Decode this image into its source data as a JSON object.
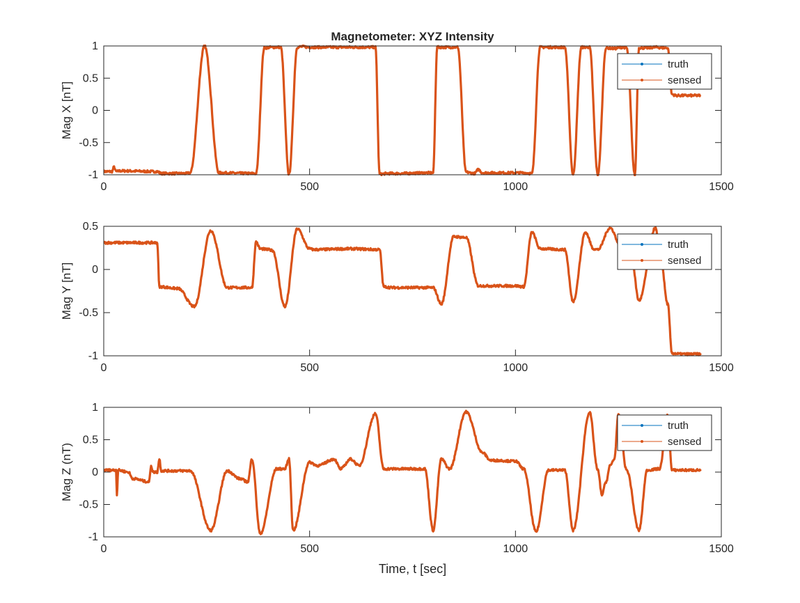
{
  "figure": {
    "title": "Magnetometer: XYZ Intensity",
    "xlabel": "Time, t [sec]"
  },
  "colors": {
    "truth": "#0072bd",
    "sensed": "#d95319",
    "axis": "#262626"
  },
  "legend_position": "top-right",
  "chart_data": [
    {
      "type": "line",
      "title": "Magnetometer: XYZ Intensity",
      "ylabel": "Mag X [nT]",
      "xlabel": "",
      "xlim": [
        0,
        1500
      ],
      "ylim": [
        -1,
        1
      ],
      "xticks": [
        0,
        500,
        1000,
        1500
      ],
      "yticks": [
        -1,
        -0.5,
        0,
        0.5,
        1
      ],
      "xtick_labels": [
        "0",
        "500",
        "1000",
        "1500"
      ],
      "ytick_labels": [
        "-1",
        "-0.5",
        "0",
        "0.5",
        "1"
      ],
      "legend": [
        "truth",
        "sensed"
      ],
      "series": [
        {
          "name": "sensed",
          "x": [
            0,
            20,
            25,
            30,
            40,
            130,
            140,
            200,
            210,
            245,
            280,
            370,
            390,
            410,
            430,
            450,
            470,
            480,
            500,
            530,
            640,
            660,
            670,
            690,
            710,
            800,
            810,
            820,
            840,
            860,
            880,
            900,
            910,
            920,
            1020,
            1040,
            1060,
            1080,
            1100,
            1120,
            1140,
            1160,
            1180,
            1200,
            1220,
            1240,
            1260,
            1270,
            1290,
            1300,
            1320,
            1340,
            1360,
            1370,
            1380,
            1390,
            1450
          ],
          "y": [
            -0.95,
            -0.95,
            -0.88,
            -0.95,
            -0.94,
            -0.95,
            -0.98,
            -0.98,
            -0.97,
            1.0,
            -0.97,
            -0.98,
            0.97,
            0.98,
            0.98,
            -1.0,
            0.98,
            0.99,
            0.98,
            0.98,
            0.98,
            0.98,
            -0.99,
            -0.98,
            -0.98,
            -0.97,
            0.98,
            0.98,
            0.98,
            0.98,
            -0.96,
            -0.98,
            -0.92,
            -0.97,
            -0.97,
            -0.98,
            0.98,
            0.98,
            0.98,
            0.98,
            -1.0,
            0.98,
            0.98,
            -1.0,
            0.97,
            0.96,
            0.98,
            0.97,
            -1.0,
            0.97,
            0.97,
            0.98,
            0.97,
            0.97,
            0.25,
            0.23,
            0.23
          ]
        },
        {
          "name": "truth",
          "x": [
            0,
            20,
            25,
            30,
            40,
            130,
            140,
            200,
            210,
            245,
            280,
            370,
            390,
            410,
            430,
            450,
            470,
            480,
            500,
            530,
            640,
            660,
            670,
            690,
            710,
            800,
            810,
            820,
            840,
            860,
            880,
            900,
            910,
            920,
            1020,
            1040,
            1060,
            1080,
            1100,
            1120,
            1140,
            1160,
            1180,
            1200,
            1220,
            1240,
            1260,
            1270,
            1290,
            1300,
            1320,
            1340,
            1360,
            1370,
            1380,
            1390,
            1450
          ],
          "y": [
            -0.95,
            -0.95,
            -0.88,
            -0.95,
            -0.94,
            -0.95,
            -0.98,
            -0.98,
            -0.97,
            1.0,
            -0.97,
            -0.98,
            0.97,
            0.98,
            0.98,
            -1.0,
            0.98,
            0.99,
            0.98,
            0.98,
            0.98,
            0.98,
            -0.99,
            -0.98,
            -0.98,
            -0.97,
            0.98,
            0.98,
            0.98,
            0.98,
            -0.96,
            -0.98,
            -0.92,
            -0.97,
            -0.97,
            -0.98,
            0.98,
            0.98,
            0.98,
            0.98,
            -1.0,
            0.98,
            0.98,
            -1.0,
            0.97,
            0.96,
            0.98,
            0.97,
            -1.0,
            0.97,
            0.97,
            0.98,
            0.97,
            0.97,
            0.25,
            0.23,
            0.23
          ]
        }
      ]
    },
    {
      "type": "line",
      "title": "",
      "ylabel": "Mag Y [nT]",
      "xlabel": "",
      "xlim": [
        0,
        1500
      ],
      "ylim": [
        -1,
        0.5
      ],
      "xticks": [
        0,
        500,
        1000,
        1500
      ],
      "yticks": [
        -1,
        -0.5,
        0,
        0.5
      ],
      "xtick_labels": [
        "0",
        "500",
        "1000",
        "1500"
      ],
      "ytick_labels": [
        "-1",
        "-0.5",
        "0",
        "0.5"
      ],
      "legend": [
        "truth",
        "sensed"
      ],
      "series": [
        {
          "name": "sensed",
          "x": [
            0,
            130,
            135,
            180,
            220,
            260,
            300,
            360,
            370,
            380,
            400,
            410,
            440,
            470,
            500,
            510,
            600,
            670,
            680,
            700,
            800,
            820,
            850,
            880,
            910,
            1000,
            1020,
            1040,
            1060,
            1120,
            1140,
            1170,
            1190,
            1200,
            1230,
            1260,
            1280,
            1300,
            1340,
            1350,
            1370,
            1380,
            1381,
            1400,
            1450
          ],
          "y": [
            0.31,
            0.31,
            -0.2,
            -0.22,
            -0.43,
            0.45,
            -0.21,
            -0.21,
            0.32,
            0.24,
            0.23,
            0.22,
            -0.43,
            0.47,
            0.24,
            0.23,
            0.24,
            0.23,
            -0.2,
            -0.21,
            -0.21,
            -0.4,
            0.38,
            0.37,
            -0.19,
            -0.19,
            -0.2,
            0.43,
            0.24,
            0.23,
            -0.37,
            0.43,
            0.24,
            0.23,
            0.48,
            0.22,
            0.2,
            -0.36,
            0.48,
            0.24,
            -0.4,
            -0.97,
            -0.97,
            -0.98,
            -0.98
          ]
        },
        {
          "name": "truth",
          "x": [
            0,
            130,
            135,
            180,
            220,
            260,
            300,
            360,
            370,
            380,
            400,
            410,
            440,
            470,
            500,
            510,
            600,
            670,
            680,
            700,
            800,
            820,
            850,
            880,
            910,
            1000,
            1020,
            1040,
            1060,
            1120,
            1140,
            1170,
            1190,
            1200,
            1230,
            1260,
            1280,
            1300,
            1340,
            1350,
            1370,
            1380,
            1381,
            1400,
            1450
          ],
          "y": [
            0.31,
            0.31,
            -0.2,
            -0.22,
            -0.43,
            0.45,
            -0.21,
            -0.21,
            0.32,
            0.24,
            0.23,
            0.22,
            -0.43,
            0.47,
            0.24,
            0.23,
            0.24,
            0.23,
            -0.2,
            -0.21,
            -0.21,
            -0.4,
            0.38,
            0.37,
            -0.19,
            -0.19,
            -0.2,
            0.43,
            0.24,
            0.23,
            -0.37,
            0.43,
            0.24,
            0.23,
            0.48,
            0.22,
            0.2,
            -0.36,
            0.48,
            0.24,
            -0.4,
            -0.97,
            -0.97,
            -0.98,
            -0.98
          ]
        }
      ]
    },
    {
      "type": "line",
      "title": "",
      "ylabel": "Mag Z (nT)",
      "xlabel": "Time, t [sec]",
      "xlim": [
        0,
        1500
      ],
      "ylim": [
        -1,
        1
      ],
      "xticks": [
        0,
        500,
        1000,
        1500
      ],
      "yticks": [
        -1,
        -0.5,
        0,
        0.5,
        1
      ],
      "xtick_labels": [
        "0",
        "500",
        "1000",
        "1500"
      ],
      "ytick_labels": [
        "-1",
        "-0.5",
        "0",
        "0.5",
        "1"
      ],
      "legend": [
        "truth",
        "sensed"
      ],
      "series": [
        {
          "name": "sensed",
          "x": [
            0,
            30,
            32,
            35,
            60,
            70,
            110,
            115,
            120,
            130,
            135,
            140,
            210,
            260,
            300,
            330,
            350,
            360,
            380,
            420,
            440,
            450,
            460,
            500,
            520,
            560,
            575,
            600,
            620,
            660,
            680,
            720,
            760,
            780,
            800,
            820,
            840,
            880,
            920,
            940,
            960,
            990,
            1000,
            1020,
            1050,
            1080,
            1120,
            1140,
            1180,
            1200,
            1210,
            1220,
            1230,
            1240,
            1250,
            1270,
            1300,
            1320,
            1350,
            1370,
            1380,
            1400,
            1450
          ],
          "y": [
            0.03,
            0.03,
            -0.35,
            0.03,
            0.0,
            -0.1,
            -0.15,
            0.1,
            0.0,
            0.0,
            0.2,
            0.02,
            0.02,
            -0.9,
            0.02,
            -0.1,
            -0.15,
            0.2,
            -0.95,
            0.05,
            0.05,
            0.2,
            -0.9,
            0.15,
            0.1,
            0.2,
            0.05,
            0.2,
            0.1,
            0.9,
            0.05,
            0.05,
            0.05,
            0.05,
            -0.9,
            0.2,
            0.05,
            0.93,
            0.3,
            0.18,
            0.18,
            0.17,
            0.17,
            0.05,
            -0.92,
            0.03,
            0.03,
            -0.9,
            0.92,
            0.03,
            -0.35,
            -0.15,
            0.1,
            0.2,
            0.88,
            0.03,
            -0.9,
            0.03,
            0.05,
            0.88,
            0.03,
            0.03,
            0.03
          ]
        },
        {
          "name": "truth",
          "x": [
            0,
            30,
            32,
            35,
            60,
            70,
            110,
            115,
            120,
            130,
            135,
            140,
            210,
            260,
            300,
            330,
            350,
            360,
            380,
            420,
            440,
            450,
            460,
            500,
            520,
            560,
            575,
            600,
            620,
            660,
            680,
            720,
            760,
            780,
            800,
            820,
            840,
            880,
            920,
            940,
            960,
            990,
            1000,
            1020,
            1050,
            1080,
            1120,
            1140,
            1180,
            1200,
            1210,
            1220,
            1230,
            1240,
            1250,
            1270,
            1300,
            1320,
            1350,
            1370,
            1380,
            1400,
            1450
          ],
          "y": [
            0.03,
            0.03,
            -0.35,
            0.03,
            0.0,
            -0.1,
            -0.15,
            0.1,
            0.0,
            0.0,
            0.2,
            0.02,
            0.02,
            -0.9,
            0.02,
            -0.1,
            -0.15,
            0.2,
            -0.95,
            0.05,
            0.05,
            0.2,
            -0.9,
            0.15,
            0.1,
            0.2,
            0.05,
            0.2,
            0.1,
            0.9,
            0.05,
            0.05,
            0.05,
            0.05,
            -0.9,
            0.2,
            0.05,
            0.93,
            0.3,
            0.18,
            0.18,
            0.17,
            0.17,
            0.05,
            -0.92,
            0.03,
            0.03,
            -0.9,
            0.92,
            0.03,
            -0.35,
            -0.15,
            0.1,
            0.2,
            0.88,
            0.03,
            -0.9,
            0.03,
            0.05,
            0.88,
            0.03,
            0.03,
            0.03
          ]
        }
      ]
    }
  ]
}
